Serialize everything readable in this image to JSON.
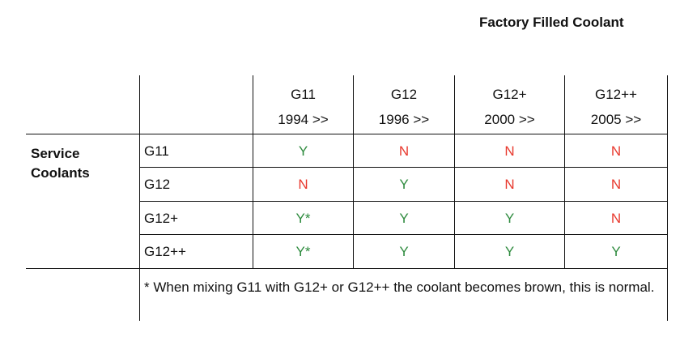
{
  "title": "Factory Filled Coolant",
  "row_group_label": "Service Coolants",
  "colors": {
    "yes": "#2e8b3e",
    "no": "#e8392e",
    "line": "#111111"
  },
  "columns": [
    {
      "name": "G11",
      "year": "1994 >>"
    },
    {
      "name": "G12",
      "year": "1996 >>"
    },
    {
      "name": "G12+",
      "year": "2000 >>"
    },
    {
      "name": "G12++",
      "year": "2005 >>"
    }
  ],
  "rows": [
    {
      "label": "G11",
      "values": [
        "Y",
        "N",
        "N",
        "N"
      ]
    },
    {
      "label": "G12",
      "values": [
        "N",
        "Y",
        "N",
        "N"
      ]
    },
    {
      "label": "G12+",
      "values": [
        "Y*",
        "Y",
        "Y",
        "N"
      ]
    },
    {
      "label": "G12++",
      "values": [
        "Y*",
        "Y",
        "Y",
        "Y"
      ]
    }
  ],
  "footnote": "* When mixing G11 with G12+ or G12++ the coolant becomes brown, this is normal."
}
